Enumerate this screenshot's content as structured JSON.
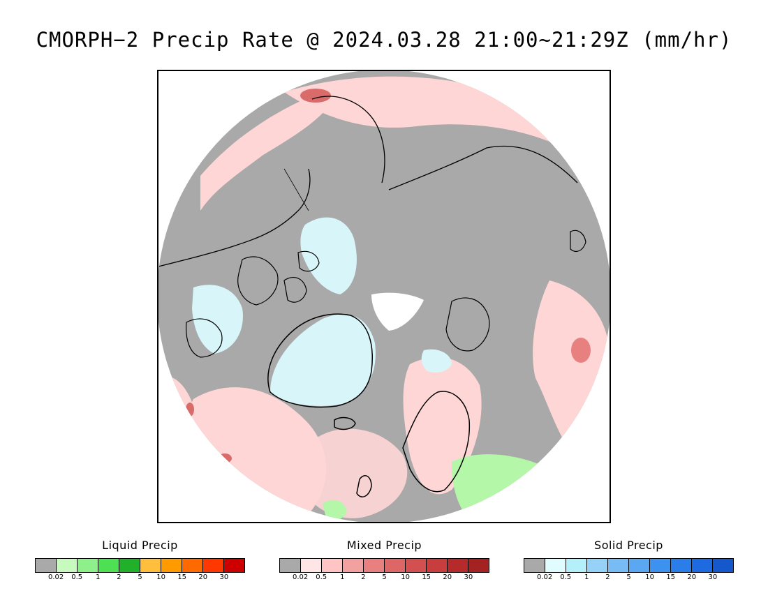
{
  "title": "CMORPH−2 Precip Rate @ 2024.03.28 21:00~21:29Z (mm/hr)",
  "colors": {
    "no_precip": "#a9a9a9",
    "pink_light": "#ffd6d6",
    "pink_dark": "#d96b6b",
    "ice_blue": "#d8f6fa",
    "light_green": "#b4f7a8",
    "coast": "#000000"
  },
  "legends": [
    {
      "title": "Liquid Precip",
      "colors": [
        "#a9a9a9",
        "#c8fac0",
        "#8ef08a",
        "#4ee053",
        "#20b02a",
        "#ffbe3c",
        "#ff9a00",
        "#ff6a00",
        "#ff3800",
        "#cc0000"
      ],
      "ticks": [
        "0.02",
        "0.5",
        "1",
        "2",
        "5",
        "10",
        "15",
        "20",
        "30"
      ]
    },
    {
      "title": "Mixed Precip",
      "colors": [
        "#a9a9a9",
        "#ffe6e6",
        "#ffc4c4",
        "#f2a0a0",
        "#e88080",
        "#dd6666",
        "#d45050",
        "#c83d3d",
        "#b52a2a",
        "#a52222"
      ],
      "ticks": [
        "0.02",
        "0.5",
        "1",
        "2",
        "5",
        "10",
        "15",
        "20",
        "30"
      ]
    },
    {
      "title": "Solid Precip",
      "colors": [
        "#a9a9a9",
        "#e0fcff",
        "#b3f0fa",
        "#96d2f7",
        "#78bcf5",
        "#5aa8f2",
        "#3c92ee",
        "#2a7ee8",
        "#1e6ae0",
        "#1558cc"
      ],
      "ticks": [
        "0.02",
        "0.5",
        "1",
        "2",
        "5",
        "10",
        "15",
        "20",
        "30"
      ]
    }
  ]
}
